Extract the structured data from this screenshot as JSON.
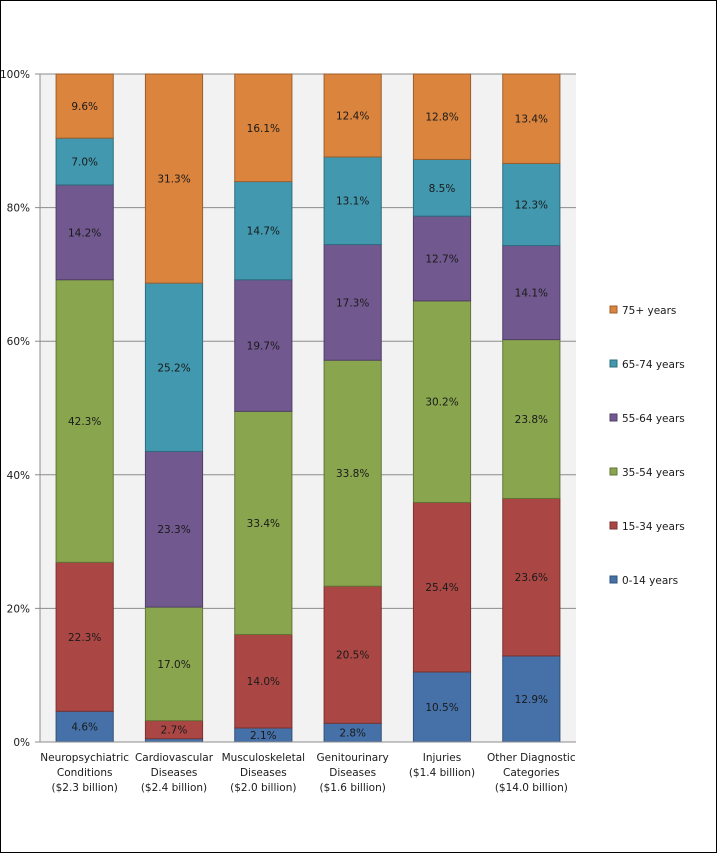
{
  "chart_data": {
    "type": "bar",
    "stacked": true,
    "percent_stacked": true,
    "title": "",
    "xlabel": "",
    "ylabel": "",
    "ylim": [
      0,
      100
    ],
    "yticks": [
      "0%",
      "20%",
      "40%",
      "60%",
      "80%",
      "100%"
    ],
    "grid": true,
    "legend_position": "right",
    "categories": [
      [
        "Neuropsychiatric",
        "Conditions",
        "($2.3 billion)"
      ],
      [
        "Cardiovascular",
        "Diseases",
        "($2.4 billion)"
      ],
      [
        "Musculoskeletal",
        "Diseases",
        "($2.0 billion)"
      ],
      [
        "Genitourinary",
        "Diseases",
        "($1.6 billion)"
      ],
      [
        "Injuries",
        "($1.4 billion)"
      ],
      [
        "Other Diagnostic",
        "Categories",
        "($14.0 billion)"
      ]
    ],
    "series": [
      {
        "name": "0-14 years",
        "color": "#4571a8",
        "values": [
          4.6,
          0.5,
          2.1,
          2.8,
          10.5,
          12.9
        ],
        "labels": [
          "4.6%",
          "",
          "2.1%",
          "2.8%",
          "10.5%",
          "12.9%"
        ]
      },
      {
        "name": "15-34 years",
        "color": "#aa4744",
        "values": [
          22.3,
          2.7,
          14.0,
          20.5,
          25.4,
          23.6
        ],
        "labels": [
          "22.3%",
          "2.7%",
          "14.0%",
          "20.5%",
          "25.4%",
          "23.6%"
        ]
      },
      {
        "name": "35-54 years",
        "color": "#89a54e",
        "values": [
          42.3,
          17.0,
          33.4,
          33.8,
          30.2,
          23.8
        ],
        "labels": [
          "42.3%",
          "17.0%",
          "33.4%",
          "33.8%",
          "30.2%",
          "23.8%"
        ]
      },
      {
        "name": "55-64 years",
        "color": "#71588f",
        "values": [
          14.2,
          23.3,
          19.7,
          17.3,
          12.7,
          14.1
        ],
        "labels": [
          "14.2%",
          "23.3%",
          "19.7%",
          "17.3%",
          "12.7%",
          "14.1%"
        ]
      },
      {
        "name": "65-74 years",
        "color": "#4198af",
        "values": [
          7.0,
          25.2,
          14.7,
          13.1,
          8.5,
          12.3
        ],
        "labels": [
          "7.0%",
          "25.2%",
          "14.7%",
          "13.1%",
          "8.5%",
          "12.3%"
        ]
      },
      {
        "name": "75+ years",
        "color": "#db843d",
        "values": [
          9.6,
          31.3,
          16.1,
          12.4,
          12.8,
          13.4
        ],
        "labels": [
          "9.6%",
          "31.3%",
          "16.1%",
          "12.4%",
          "12.8%",
          "13.4%"
        ]
      }
    ]
  }
}
